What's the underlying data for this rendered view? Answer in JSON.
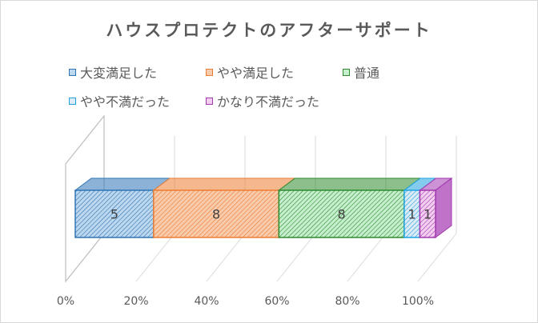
{
  "chart_data": {
    "type": "bar",
    "subtype": "3d-stacked-100-percent-horizontal",
    "title": "ハウスプロテクトのアフターサポート",
    "categories": [
      ""
    ],
    "series": [
      {
        "name": "大変満足した",
        "values": [
          5
        ],
        "color": "#2e75b6",
        "fill": "#bdd7ee"
      },
      {
        "name": "やや満足した",
        "values": [
          8
        ],
        "color": "#ed7d31",
        "fill": "#f8cbad"
      },
      {
        "name": "普通",
        "values": [
          8
        ],
        "color": "#2e8b2e",
        "fill": "#c6efce"
      },
      {
        "name": "やや不満だった",
        "values": [
          1
        ],
        "color": "#1fa3e0",
        "fill": "#ddebf7"
      },
      {
        "name": "かなり不満だった",
        "values": [
          1
        ],
        "color": "#a238b0",
        "fill": "#f2ceef"
      }
    ],
    "xticks": [
      "0%",
      "20%",
      "40%",
      "60%",
      "80%",
      "100%"
    ],
    "xlim": [
      0,
      100
    ],
    "legend_position": "top",
    "grid": true
  }
}
